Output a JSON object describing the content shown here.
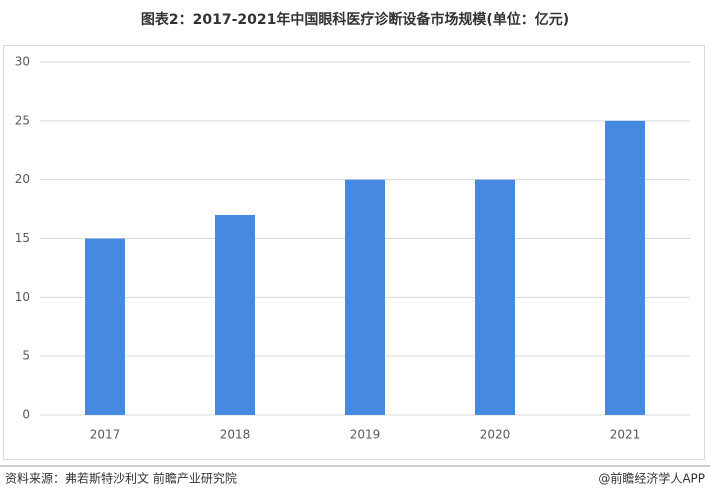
{
  "chart_data": {
    "type": "bar",
    "title": "图表2：2017-2021年中国眼科医疗诊断设备市场规模(单位：亿元)",
    "categories": [
      "2017",
      "2018",
      "2019",
      "2020",
      "2021"
    ],
    "values": [
      15,
      17,
      20,
      20,
      25
    ],
    "color": "#4689e0",
    "ylim": [
      0,
      30
    ],
    "yticks": [
      0,
      5,
      10,
      15,
      20,
      25,
      30
    ],
    "grid": true
  },
  "footer": {
    "source": "资料来源：弗若斯特沙利文 前瞻产业研究院",
    "credit": "@前瞻经济学人APP"
  }
}
